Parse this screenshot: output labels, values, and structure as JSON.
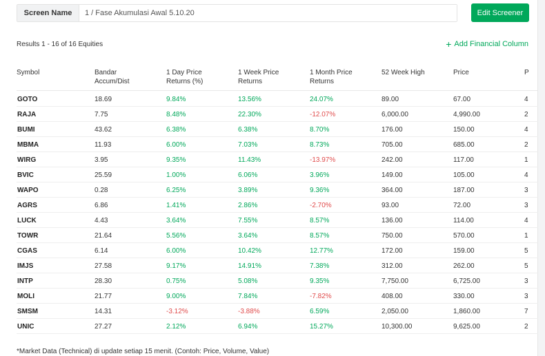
{
  "screen_name_label": "Screen Name",
  "screen_name_value": "1 / Fase Akumulasi Awal 5.10.20",
  "edit_button": "Edit Screener",
  "results_text": "Results 1 - 16 of 16 Equities",
  "add_column_label": "Add Financial Column",
  "columns": [
    {
      "key": "symbol",
      "lines": [
        "Symbol"
      ]
    },
    {
      "key": "bandar",
      "lines": [
        "Bandar",
        "Accum/Dist"
      ]
    },
    {
      "key": "d1",
      "lines": [
        "1 Day Price",
        "Returns (%)"
      ]
    },
    {
      "key": "w1",
      "lines": [
        "1 Week Price",
        "Returns"
      ]
    },
    {
      "key": "m1",
      "lines": [
        "1 Month Price",
        "Returns"
      ]
    },
    {
      "key": "hi52",
      "lines": [
        "52 Week High"
      ]
    },
    {
      "key": "price",
      "lines": [
        "Price"
      ]
    },
    {
      "key": "p",
      "lines": [
        "P"
      ]
    }
  ],
  "rows": [
    {
      "symbol": "GOTO",
      "bandar": "18.69",
      "d1": "9.84%",
      "w1": "13.56%",
      "m1": "24.07%",
      "hi52": "89.00",
      "price": "67.00",
      "p": "4"
    },
    {
      "symbol": "RAJA",
      "bandar": "7.75",
      "d1": "8.48%",
      "w1": "22.30%",
      "m1": "-12.07%",
      "hi52": "6,000.00",
      "price": "4,990.00",
      "p": "2"
    },
    {
      "symbol": "BUMI",
      "bandar": "43.62",
      "d1": "6.38%",
      "w1": "6.38%",
      "m1": "8.70%",
      "hi52": "176.00",
      "price": "150.00",
      "p": "4"
    },
    {
      "symbol": "MBMA",
      "bandar": "11.93",
      "d1": "6.00%",
      "w1": "7.03%",
      "m1": "8.73%",
      "hi52": "705.00",
      "price": "685.00",
      "p": "2"
    },
    {
      "symbol": "WIRG",
      "bandar": "3.95",
      "d1": "9.35%",
      "w1": "11.43%",
      "m1": "-13.97%",
      "hi52": "242.00",
      "price": "117.00",
      "p": "1"
    },
    {
      "symbol": "BVIC",
      "bandar": "25.59",
      "d1": "1.00%",
      "w1": "6.06%",
      "m1": "3.96%",
      "hi52": "149.00",
      "price": "105.00",
      "p": "4"
    },
    {
      "symbol": "WAPO",
      "bandar": "0.28",
      "d1": "6.25%",
      "w1": "3.89%",
      "m1": "9.36%",
      "hi52": "364.00",
      "price": "187.00",
      "p": "3"
    },
    {
      "symbol": "AGRS",
      "bandar": "6.86",
      "d1": "1.41%",
      "w1": "2.86%",
      "m1": "-2.70%",
      "hi52": "93.00",
      "price": "72.00",
      "p": "3"
    },
    {
      "symbol": "LUCK",
      "bandar": "4.43",
      "d1": "3.64%",
      "w1": "7.55%",
      "m1": "8.57%",
      "hi52": "136.00",
      "price": "114.00",
      "p": "4"
    },
    {
      "symbol": "TOWR",
      "bandar": "21.64",
      "d1": "5.56%",
      "w1": "3.64%",
      "m1": "8.57%",
      "hi52": "750.00",
      "price": "570.00",
      "p": "1"
    },
    {
      "symbol": "CGAS",
      "bandar": "6.14",
      "d1": "6.00%",
      "w1": "10.42%",
      "m1": "12.77%",
      "hi52": "172.00",
      "price": "159.00",
      "p": "5"
    },
    {
      "symbol": "IMJS",
      "bandar": "27.58",
      "d1": "9.17%",
      "w1": "14.91%",
      "m1": "7.38%",
      "hi52": "312.00",
      "price": "262.00",
      "p": "5"
    },
    {
      "symbol": "INTP",
      "bandar": "28.30",
      "d1": "0.75%",
      "w1": "5.08%",
      "m1": "9.35%",
      "hi52": "7,750.00",
      "price": "6,725.00",
      "p": "3"
    },
    {
      "symbol": "MOLI",
      "bandar": "21.77",
      "d1": "9.00%",
      "w1": "7.84%",
      "m1": "-7.82%",
      "hi52": "408.00",
      "price": "330.00",
      "p": "3"
    },
    {
      "symbol": "SMSM",
      "bandar": "14.31",
      "d1": "-3.12%",
      "w1": "-3.88%",
      "m1": "6.59%",
      "hi52": "2,050.00",
      "price": "1,860.00",
      "p": "7"
    },
    {
      "symbol": "UNIC",
      "bandar": "27.27",
      "d1": "2.12%",
      "w1": "6.94%",
      "m1": "15.27%",
      "hi52": "10,300.00",
      "price": "9,625.00",
      "p": "2"
    }
  ],
  "footnote": "*Market Data (Technical) di update setiap 15 menit. (Contoh: Price, Volume, Value)",
  "colors": {
    "positive": "#00a85a",
    "negative": "#e04b4b",
    "accent": "#00a85a"
  }
}
